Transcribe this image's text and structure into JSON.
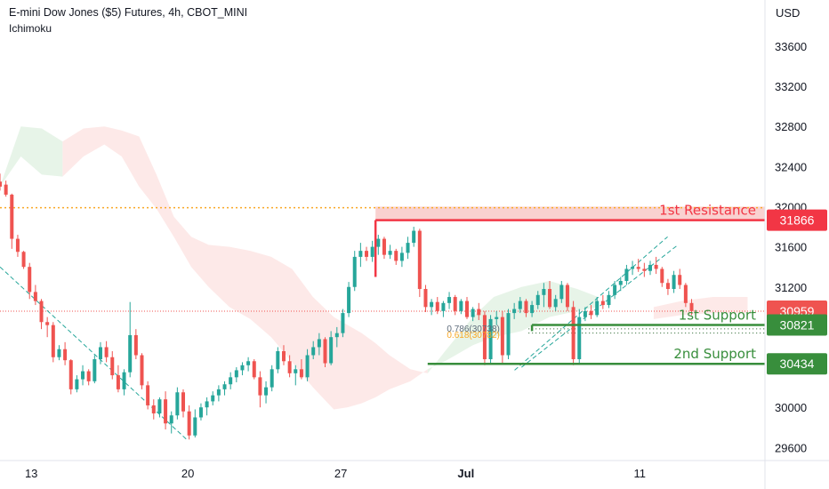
{
  "header": {
    "title": "E-mini Dow Jones ($5) Futures, 4h, CBOT_MINI",
    "indicator": "Ichimoku",
    "currency": "USD"
  },
  "colors": {
    "up": "#26a69a",
    "down": "#ef5350",
    "resistance": "#f23645",
    "support": "#388e3c",
    "cloud_bear": "#fde5e4",
    "cloud_bull": "#e3f2e4",
    "fib": "#f9a825",
    "trend": "#26a69a"
  },
  "chart_data": {
    "type": "candlestick",
    "y_ticks": [
      29600,
      30000,
      30400,
      30800,
      31200,
      31600,
      32000,
      32400,
      32800,
      33200,
      33600
    ],
    "ylim": [
      29470,
      34060
    ],
    "xlim": [
      0,
      220
    ],
    "x_ticks": [
      {
        "label": "13",
        "x": 9
      },
      {
        "label": "20",
        "x": 54
      },
      {
        "label": "27",
        "x": 98
      },
      {
        "label": "Jul",
        "x": 134
      },
      {
        "label": "11",
        "x": 184
      }
    ],
    "ohlc": [
      [
        32250,
        32330,
        32160,
        32200
      ],
      [
        32220,
        32260,
        32100,
        32120
      ],
      [
        32120,
        32130,
        31580,
        31680
      ],
      [
        31680,
        31720,
        31500,
        31550
      ],
      [
        31550,
        31560,
        31380,
        31400
      ],
      [
        31400,
        31440,
        31080,
        31150
      ],
      [
        31150,
        31220,
        31020,
        31060
      ],
      [
        31060,
        31080,
        30780,
        30850
      ],
      [
        30850,
        30900,
        30700,
        30820
      ],
      [
        30820,
        30850,
        30450,
        30500
      ],
      [
        30500,
        30620,
        30470,
        30580
      ],
      [
        30580,
        30650,
        30420,
        30470
      ],
      [
        30470,
        30480,
        30130,
        30180
      ],
      [
        30180,
        30320,
        30150,
        30280
      ],
      [
        30280,
        30420,
        30220,
        30360
      ],
      [
        30360,
        30380,
        30220,
        30260
      ],
      [
        30260,
        30520,
        30240,
        30480
      ],
      [
        30480,
        30650,
        30430,
        30600
      ],
      [
        30600,
        30660,
        30450,
        30500
      ],
      [
        30500,
        30560,
        30280,
        30320
      ],
      [
        30320,
        30420,
        30150,
        30180
      ],
      [
        30180,
        30380,
        30120,
        30350
      ],
      [
        30350,
        31050,
        30300,
        30720
      ],
      [
        30720,
        30780,
        30480,
        30520
      ],
      [
        30520,
        30540,
        30180,
        30220
      ],
      [
        30220,
        30260,
        29980,
        30020
      ],
      [
        30020,
        30080,
        29880,
        29940
      ],
      [
        29940,
        30100,
        29900,
        30080
      ],
      [
        30080,
        30160,
        29780,
        29840
      ],
      [
        29840,
        29960,
        29740,
        29920
      ],
      [
        29920,
        30200,
        29880,
        30150
      ],
      [
        30150,
        30180,
        29900,
        29960
      ],
      [
        29960,
        30020,
        29680,
        29720
      ],
      [
        29720,
        29980,
        29700,
        29900
      ],
      [
        29900,
        30040,
        29870,
        30000
      ],
      [
        30000,
        30100,
        29920,
        30060
      ],
      [
        30060,
        30160,
        30020,
        30120
      ],
      [
        30120,
        30220,
        30060,
        30180
      ],
      [
        30180,
        30260,
        30120,
        30230
      ],
      [
        30230,
        30350,
        30180,
        30300
      ],
      [
        30300,
        30400,
        30250,
        30370
      ],
      [
        30370,
        30450,
        30320,
        30420
      ],
      [
        30420,
        30500,
        30360,
        30460
      ],
      [
        30460,
        30480,
        30280,
        30300
      ],
      [
        30300,
        30360,
        30000,
        30120
      ],
      [
        30120,
        30260,
        30040,
        30200
      ],
      [
        30200,
        30420,
        30160,
        30380
      ],
      [
        30380,
        30600,
        30340,
        30560
      ],
      [
        30560,
        30620,
        30420,
        30460
      ],
      [
        30460,
        30520,
        30300,
        30340
      ],
      [
        30340,
        30420,
        30220,
        30380
      ],
      [
        30380,
        30480,
        30280,
        30300
      ],
      [
        30300,
        30580,
        30260,
        30520
      ],
      [
        30520,
        30660,
        30480,
        30600
      ],
      [
        30600,
        30740,
        30520,
        30680
      ],
      [
        30680,
        30700,
        30400,
        30440
      ],
      [
        30440,
        30760,
        30420,
        30700
      ],
      [
        30700,
        30800,
        30600,
        30740
      ],
      [
        30740,
        30980,
        30700,
        30940
      ],
      [
        30940,
        31250,
        30900,
        31200
      ],
      [
        31200,
        31560,
        31160,
        31500
      ],
      [
        31500,
        31640,
        31400,
        31560
      ],
      [
        31560,
        31600,
        31460,
        31500
      ],
      [
        31500,
        31660,
        31450,
        31600
      ],
      [
        31600,
        31720,
        31520,
        31680
      ],
      [
        31680,
        31700,
        31480,
        31520
      ],
      [
        31520,
        31620,
        31480,
        31560
      ],
      [
        31560,
        31580,
        31420,
        31460
      ],
      [
        31460,
        31600,
        31400,
        31540
      ],
      [
        31540,
        31700,
        31480,
        31640
      ],
      [
        31640,
        31800,
        31600,
        31760
      ],
      [
        31760,
        31780,
        31100,
        31180
      ],
      [
        31180,
        31220,
        30950,
        31000
      ],
      [
        31000,
        31080,
        30920,
        31050
      ],
      [
        31050,
        31100,
        30930,
        30960
      ],
      [
        30960,
        31060,
        30900,
        31040
      ],
      [
        31040,
        31150,
        30980,
        31100
      ],
      [
        31100,
        31120,
        30920,
        30960
      ],
      [
        30960,
        31080,
        30930,
        31060
      ],
      [
        31060,
        31100,
        30880,
        30900
      ],
      [
        30900,
        31000,
        30860,
        30980
      ],
      [
        30980,
        31040,
        30870,
        30920
      ],
      [
        30920,
        30960,
        30420,
        30480
      ],
      [
        30480,
        30920,
        30440,
        30880
      ],
      [
        30880,
        30960,
        30820,
        30900
      ],
      [
        30900,
        30960,
        30440,
        30520
      ],
      [
        30520,
        30980,
        30480,
        30940
      ],
      [
        30940,
        31040,
        30880,
        30980
      ],
      [
        30980,
        31100,
        30940,
        31060
      ],
      [
        31060,
        31080,
        30900,
        30940
      ],
      [
        30940,
        31060,
        30900,
        31020
      ],
      [
        31020,
        31160,
        30980,
        31120
      ],
      [
        31120,
        31240,
        31000,
        31180
      ],
      [
        31180,
        31260,
        30980,
        31000
      ],
      [
        31000,
        31120,
        30960,
        31080
      ],
      [
        31080,
        31260,
        31040,
        31220
      ],
      [
        31220,
        31240,
        30960,
        31000
      ],
      [
        31000,
        31060,
        30420,
        30480
      ],
      [
        30480,
        30980,
        30440,
        30900
      ],
      [
        30900,
        31000,
        30860,
        30960
      ],
      [
        30960,
        31020,
        30880,
        30920
      ],
      [
        30920,
        31100,
        30900,
        31060
      ],
      [
        31060,
        31120,
        30980,
        31020
      ],
      [
        31020,
        31160,
        30990,
        31120
      ],
      [
        31120,
        31260,
        31080,
        31220
      ],
      [
        31220,
        31300,
        31160,
        31260
      ],
      [
        31260,
        31420,
        31220,
        31380
      ],
      [
        31380,
        31460,
        31320,
        31400
      ],
      [
        31400,
        31480,
        31350,
        31380
      ],
      [
        31380,
        31440,
        31300,
        31360
      ],
      [
        31360,
        31460,
        31320,
        31420
      ],
      [
        31420,
        31500,
        31330,
        31380
      ],
      [
        31380,
        31400,
        31200,
        31240
      ],
      [
        31240,
        31280,
        31120,
        31180
      ],
      [
        31180,
        31360,
        31140,
        31320
      ],
      [
        31320,
        31380,
        31180,
        31220
      ],
      [
        31220,
        31240,
        31000,
        31040
      ],
      [
        31040,
        31080,
        30920,
        30960
      ]
    ],
    "candle_start_x": 0,
    "candle_step": 1.7,
    "cloud": {
      "bear": [
        [
          [
            18,
            32650
          ],
          [
            24,
            32780
          ],
          [
            30,
            32800
          ],
          [
            35,
            32760
          ],
          [
            40,
            32700
          ],
          [
            45,
            32320
          ],
          [
            50,
            31900
          ],
          [
            55,
            31700
          ],
          [
            60,
            31620
          ],
          [
            66,
            31600
          ],
          [
            72,
            31560
          ],
          [
            78,
            31500
          ],
          [
            84,
            31380
          ],
          [
            90,
            31100
          ],
          [
            96,
            30900
          ],
          [
            100,
            30820
          ],
          [
            104,
            30740
          ],
          [
            108,
            30640
          ],
          [
            112,
            30520
          ],
          [
            118,
            30380
          ],
          [
            123,
            30340
          ]
        ],
        [
          [
            18,
            32300
          ],
          [
            24,
            32500
          ],
          [
            30,
            32620
          ],
          [
            35,
            32500
          ],
          [
            40,
            32200
          ],
          [
            45,
            31980
          ],
          [
            50,
            31700
          ],
          [
            55,
            31400
          ],
          [
            60,
            31200
          ],
          [
            66,
            31000
          ],
          [
            72,
            30880
          ],
          [
            78,
            30700
          ],
          [
            84,
            30450
          ],
          [
            90,
            30200
          ],
          [
            96,
            29980
          ],
          [
            100,
            30000
          ],
          [
            104,
            30040
          ],
          [
            108,
            30100
          ],
          [
            112,
            30180
          ],
          [
            118,
            30260
          ],
          [
            123,
            30380
          ]
        ]
      ],
      "bull_left": [
        [
          [
            0,
            32200
          ],
          [
            6,
            32800
          ],
          [
            12,
            32780
          ],
          [
            18,
            32650
          ]
        ],
        [
          [
            0,
            32200
          ],
          [
            6,
            32500
          ],
          [
            12,
            32320
          ],
          [
            18,
            32300
          ]
        ]
      ],
      "bull_mid": [
        [
          [
            123,
            30340
          ],
          [
            128,
            30560
          ],
          [
            136,
            30900
          ],
          [
            142,
            31100
          ],
          [
            150,
            31200
          ],
          [
            158,
            31260
          ],
          [
            166,
            31180
          ],
          [
            172,
            31100
          ]
        ],
        [
          [
            123,
            30380
          ],
          [
            128,
            30460
          ],
          [
            136,
            30620
          ],
          [
            142,
            30700
          ],
          [
            150,
            30760
          ],
          [
            158,
            30900
          ],
          [
            166,
            30960
          ],
          [
            172,
            31000
          ]
        ]
      ],
      "bear_right": [
        [
          [
            188,
            31000
          ],
          [
            196,
            31060
          ],
          [
            205,
            31100
          ],
          [
            215,
            31100
          ]
        ],
        [
          [
            188,
            30880
          ],
          [
            196,
            30920
          ],
          [
            205,
            30940
          ],
          [
            215,
            30940
          ]
        ]
      ]
    },
    "levels": [
      {
        "name": "1st Resistance",
        "value": 31866,
        "from_x": 108,
        "label": "1st Resistance",
        "color": "resistance"
      },
      {
        "name": "1st Support",
        "value": 30821,
        "from_x": 153,
        "label": "1st Support",
        "color": "support"
      },
      {
        "name": "2nd Support",
        "value": 30434,
        "from_x": 123,
        "label": "2nd Support",
        "color": "support"
      }
    ],
    "resistance_zone": [
      31866,
      32000
    ],
    "current_price": 30959,
    "orange_dotted": 31990,
    "fib": {
      "labels": [
        "0.786(30738)",
        "0.618(30782)"
      ],
      "values": [
        30738,
        30782
      ],
      "x": 128
    },
    "trendlines": [
      {
        "points": [
          [
            0,
            31400
          ],
          [
            54,
            29670
          ]
        ],
        "dash": true
      },
      {
        "points": [
          [
            148,
            30370
          ],
          [
            192,
            31700
          ]
        ],
        "dash": true
      },
      {
        "points": [
          [
            150,
            30400
          ],
          [
            195,
            31620
          ]
        ],
        "dash": true
      }
    ],
    "price_tags": [
      {
        "value": 31866,
        "text": "31866",
        "color": "resistance"
      },
      {
        "value": 30959,
        "text": "30959",
        "color": "down"
      },
      {
        "value": 30821,
        "text": "30821",
        "color": "support"
      },
      {
        "value": 30434,
        "text": "30434",
        "color": "support"
      }
    ]
  }
}
